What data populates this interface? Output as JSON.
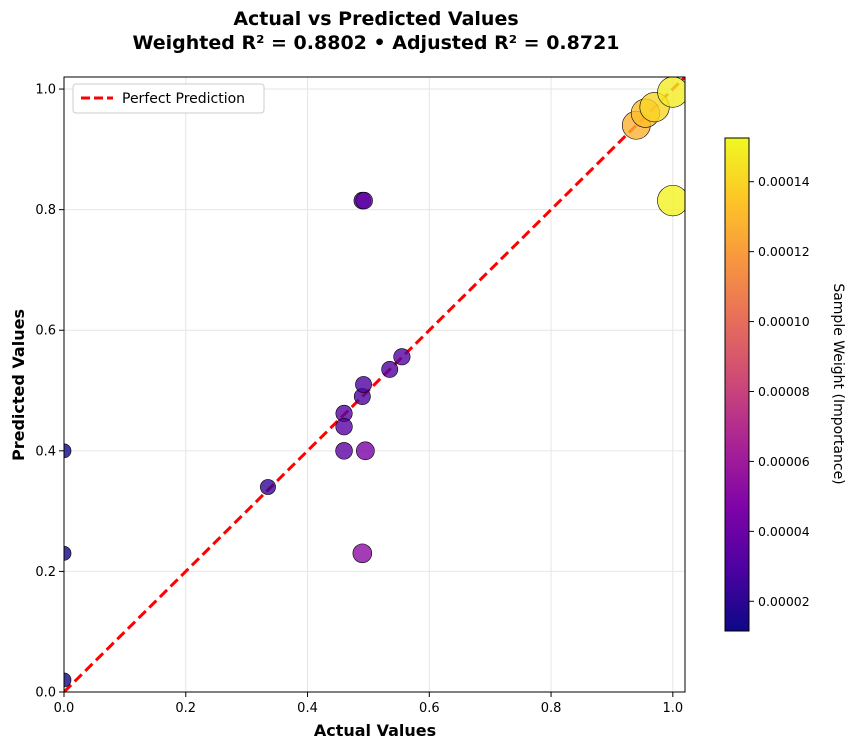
{
  "chart_data": {
    "type": "scatter",
    "title_line1": "Actual vs Predicted Values",
    "title_line2": "Weighted R² = 0.8802  •  Adjusted R² = 0.8721",
    "xlabel": "Actual Values",
    "ylabel": "Predicted Values",
    "xlim": [
      0.0,
      1.02
    ],
    "ylim": [
      0.0,
      1.02
    ],
    "x_ticks": [
      "0.0",
      "0.2",
      "0.4",
      "0.6",
      "0.8",
      "1.0"
    ],
    "y_ticks": [
      "0.0",
      "0.2",
      "0.4",
      "0.6",
      "0.8",
      "1.0"
    ],
    "grid": true,
    "legend": {
      "placement": "top-left",
      "entries": [
        "Perfect Prediction"
      ]
    },
    "reference_line": {
      "name": "Perfect Prediction",
      "style": "dashed",
      "color": "#ff0000",
      "from": [
        0,
        0
      ],
      "to": [
        1.02,
        1.02
      ]
    },
    "colormap": "plasma",
    "colorbar": {
      "label": "Sample Weight (Importance)",
      "range": [
        1.15e-05,
        0.0001525
      ],
      "tick_values": [
        2e-05,
        4e-05,
        6e-05,
        8e-05,
        0.0001,
        0.00012,
        0.00014
      ],
      "tick_labels": [
        "0.00002",
        "0.00004",
        "0.00006",
        "0.00008",
        "0.00010",
        "0.00012",
        "0.00014"
      ]
    },
    "points": [
      {
        "x": 0.0,
        "y": 0.02,
        "weight": 1.2e-05
      },
      {
        "x": 0.0,
        "y": 0.23,
        "weight": 1.2e-05
      },
      {
        "x": 0.0,
        "y": 0.4,
        "weight": 1.2e-05
      },
      {
        "x": 0.335,
        "y": 0.34,
        "weight": 2.2e-05
      },
      {
        "x": 0.46,
        "y": 0.4,
        "weight": 3.5e-05
      },
      {
        "x": 0.46,
        "y": 0.44,
        "weight": 3.3e-05
      },
      {
        "x": 0.46,
        "y": 0.462,
        "weight": 3.2e-05
      },
      {
        "x": 0.49,
        "y": 0.49,
        "weight": 3e-05
      },
      {
        "x": 0.492,
        "y": 0.51,
        "weight": 3e-05
      },
      {
        "x": 0.535,
        "y": 0.535,
        "weight": 3e-05
      },
      {
        "x": 0.555,
        "y": 0.556,
        "weight": 3.2e-05
      },
      {
        "x": 0.49,
        "y": 0.815,
        "weight": 3.5e-05
      },
      {
        "x": 0.493,
        "y": 0.815,
        "weight": 3.5e-05
      },
      {
        "x": 0.495,
        "y": 0.4,
        "weight": 4.5e-05
      },
      {
        "x": 0.49,
        "y": 0.23,
        "weight": 5.2e-05
      },
      {
        "x": 0.94,
        "y": 0.94,
        "weight": 0.000128
      },
      {
        "x": 0.955,
        "y": 0.96,
        "weight": 0.000132
      },
      {
        "x": 0.97,
        "y": 0.97,
        "weight": 0.00014
      },
      {
        "x": 1.0,
        "y": 0.995,
        "weight": 0.000148
      },
      {
        "x": 1.0,
        "y": 0.815,
        "weight": 0.00015
      }
    ]
  }
}
